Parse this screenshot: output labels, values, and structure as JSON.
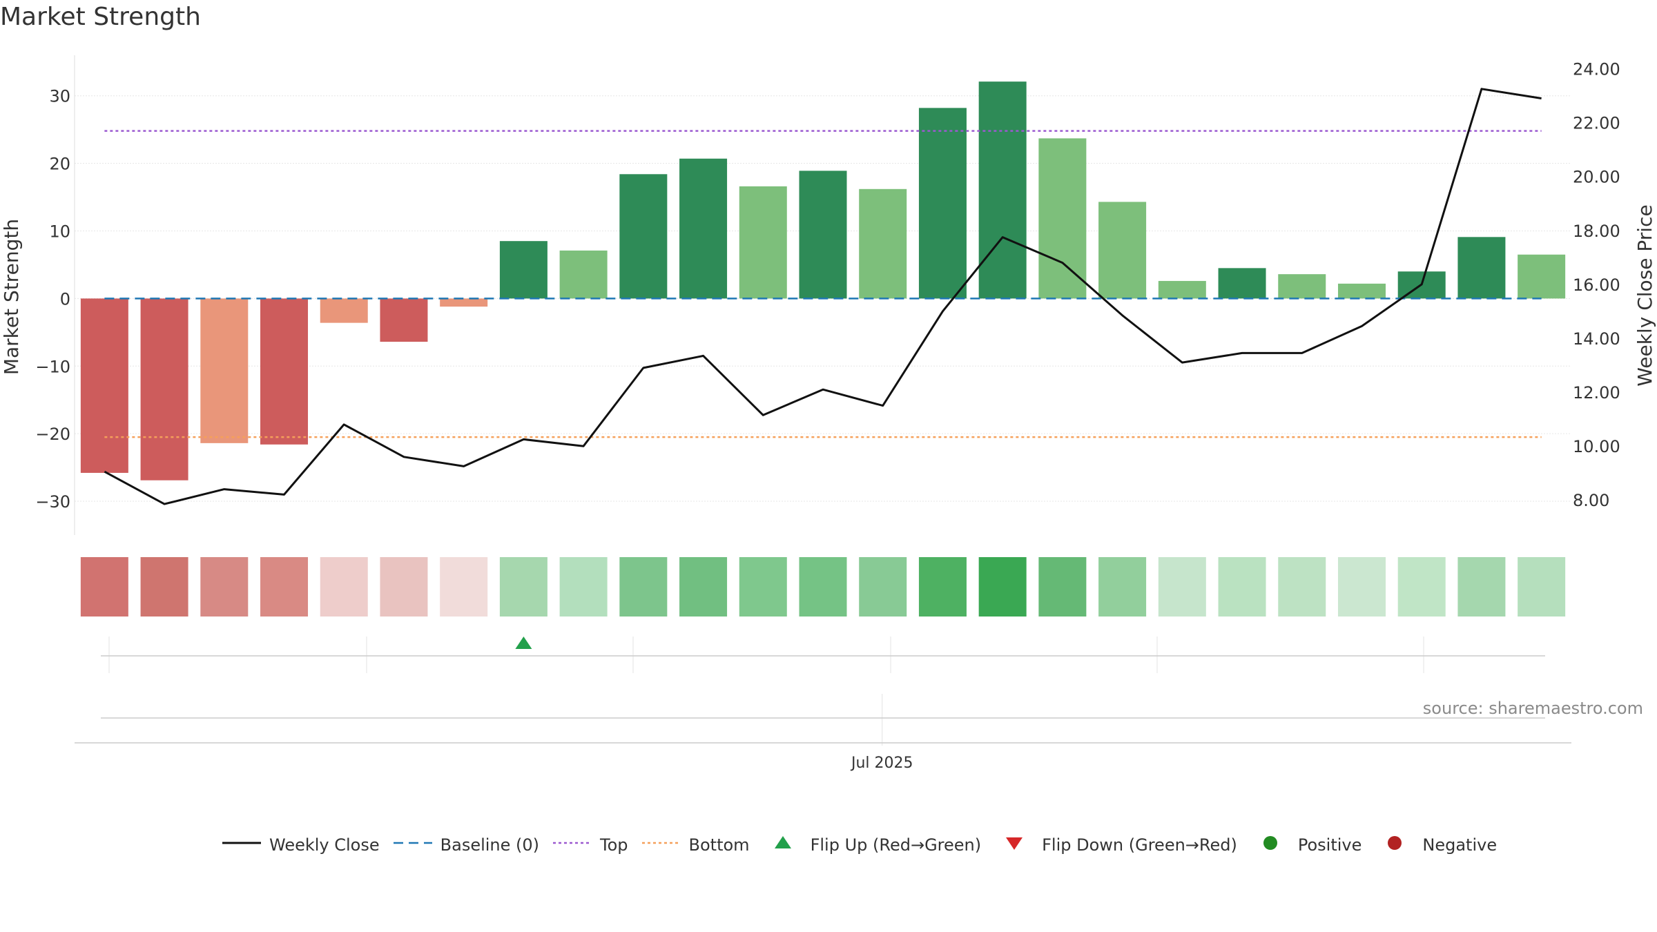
{
  "title": "Market Strength",
  "source": "source: sharemaestro.com",
  "colors": {
    "strong_green": "#2e8b57",
    "light_green": "#7dbf7b",
    "strong_red": "#cd5c5c",
    "light_red": "#e9967a",
    "close_line": "#111111",
    "baseline": "#1f77b4",
    "top": "#9b59d0",
    "bottom": "#f5a05a",
    "flip_up": "#22a04b",
    "flip_down": "#d62728",
    "positive": "#228b22",
    "negative": "#b22222"
  },
  "legend": [
    {
      "key": "close",
      "label": "Weekly Close"
    },
    {
      "key": "baseline",
      "label": "Baseline (0)"
    },
    {
      "key": "top",
      "label": "Top"
    },
    {
      "key": "bottom",
      "label": "Bottom"
    },
    {
      "key": "flip_up",
      "label": "Flip Up (Red→Green)"
    },
    {
      "key": "flip_down",
      "label": "Flip Down (Green→Red)"
    },
    {
      "key": "positive",
      "label": "Positive"
    },
    {
      "key": "negative",
      "label": "Negative"
    }
  ],
  "chart_data": {
    "type": "bar",
    "title": "Market Strength",
    "ylabel": "Market Strength",
    "y2label": "Weekly Close Price",
    "ylim": [
      -35,
      36
    ],
    "y2lim": [
      6.7,
      24.5
    ],
    "yticks": [
      30,
      20,
      10,
      0,
      -10,
      -20,
      -30
    ],
    "ytick_labels": [
      "30",
      "20",
      "10",
      "0",
      "−10",
      "−20",
      "−30"
    ],
    "y2ticks": [
      24,
      22,
      20,
      18,
      16,
      14,
      12,
      10,
      8
    ],
    "y2tick_labels": [
      "24.00",
      "22.00",
      "20.00",
      "18.00",
      "16.00",
      "14.00",
      "12.00",
      "10.00",
      "8.00"
    ],
    "x_tick_label": "Jul 2025",
    "x_tick_index": 13,
    "grid": true,
    "legend_position": "bottom",
    "series": [
      {
        "name": "Market Strength",
        "type": "bar",
        "values": [
          -25.8,
          -26.9,
          -21.4,
          -21.6,
          -3.6,
          -6.4,
          -1.2,
          8.5,
          7.1,
          18.4,
          20.7,
          16.6,
          18.9,
          16.2,
          28.2,
          32.1,
          23.7,
          14.3,
          2.6,
          4.5,
          3.6,
          2.2,
          4.0,
          9.1,
          6.5
        ],
        "strength": [
          "strong",
          "strong",
          "weak",
          "strong",
          "weak",
          "strong",
          "weak",
          "strong",
          "weak",
          "strong",
          "strong",
          "weak",
          "strong",
          "weak",
          "strong",
          "strong",
          "weak",
          "weak",
          "weak",
          "strong",
          "weak",
          "weak",
          "strong",
          "strong",
          "weak"
        ]
      },
      {
        "name": "Weekly Close",
        "type": "line",
        "axis": "right",
        "values": [
          9.05,
          7.85,
          8.4,
          8.2,
          10.8,
          9.6,
          9.25,
          10.25,
          10.0,
          12.9,
          13.35,
          11.15,
          12.1,
          11.5,
          15.0,
          17.75,
          16.8,
          14.85,
          13.1,
          13.45,
          13.45,
          14.45,
          16.0,
          23.25,
          22.9
        ]
      },
      {
        "name": "Baseline (0)",
        "type": "hline",
        "value": 0
      },
      {
        "name": "Top",
        "type": "hline",
        "value": 24.8
      },
      {
        "name": "Bottom",
        "type": "hline",
        "value": -20.5
      }
    ],
    "heat_strip": {
      "colors": [
        "#d17370",
        "#cf756f",
        "#d78a85",
        "#d98a84",
        "#eecdcb",
        "#e9c3c0",
        "#f1dcda",
        "#a6d7ae",
        "#b3dfbd",
        "#7dc58c",
        "#71bf81",
        "#7fc88d",
        "#75c385",
        "#88ca95",
        "#4eb162",
        "#3aa853",
        "#65b975",
        "#92cf9c",
        "#c6e5cc",
        "#bae2c1",
        "#bde2c3",
        "#cbe7d0",
        "#c0e5c6",
        "#a5d7ae",
        "#b5dfbd"
      ]
    },
    "flip_up_weeks": [
      7
    ],
    "flip_down_weeks": []
  }
}
